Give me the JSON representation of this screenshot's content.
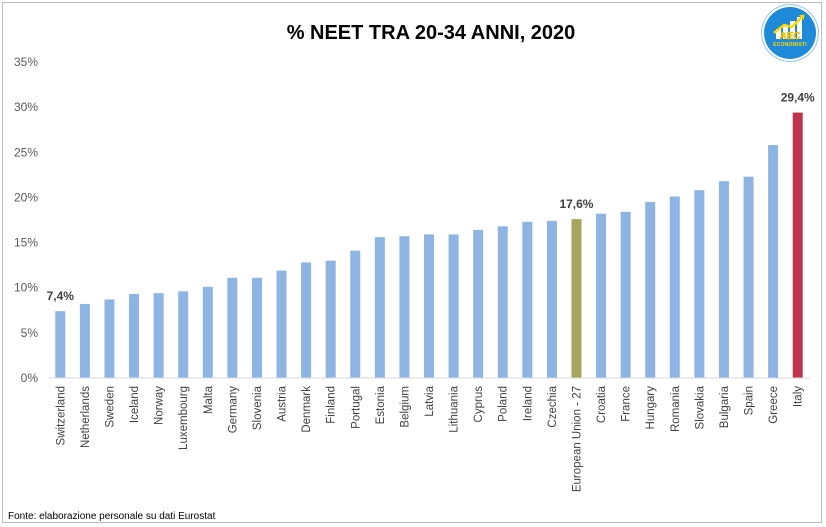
{
  "title": "% NEET TRA 20-34 ANNI, 2020",
  "source": "Fonte: elaborazione personale su dati Eurostat",
  "logo": {
    "text": "ECONOMISTI"
  },
  "colors": {
    "default_bar": "#8db4e2",
    "eu_bar": "#a6a55e",
    "italy_bar": "#c0344e"
  },
  "chart_data": {
    "type": "bar",
    "title": "% NEET TRA 20-34 ANNI, 2020",
    "xlabel": "",
    "ylabel": "",
    "ylim": [
      0,
      35
    ],
    "yticks": [
      "0%",
      "5%",
      "10%",
      "15%",
      "20%",
      "25%",
      "30%",
      "35%"
    ],
    "grid": false,
    "legend": "none",
    "categories": [
      "Switzerland",
      "Netherlands",
      "Sweden",
      "Iceland",
      "Norway",
      "Luxembourg",
      "Malta",
      "Germany",
      "Slovenia",
      "Austria",
      "Denmark",
      "Finland",
      "Portugal",
      "Estonia",
      "Belgium",
      "Latvia",
      "Lithuania",
      "Cyprus",
      "Poland",
      "Ireland",
      "Czechia",
      "European Union - 27",
      "Croatia",
      "France",
      "Hungary",
      "Romania",
      "Slovakia",
      "Bulgaria",
      "Spain",
      "Greece",
      "Italy"
    ],
    "values": [
      7.4,
      8.2,
      8.7,
      9.3,
      9.4,
      9.6,
      10.1,
      11.1,
      11.1,
      11.9,
      12.8,
      13.0,
      14.1,
      15.6,
      15.7,
      15.9,
      15.9,
      16.4,
      16.8,
      17.3,
      17.4,
      17.6,
      18.2,
      18.4,
      19.5,
      20.1,
      20.8,
      21.8,
      22.3,
      25.8,
      29.4
    ],
    "data_labels": [
      {
        "category": "Switzerland",
        "text": "7,4%"
      },
      {
        "category": "European Union - 27",
        "text": "17,6%"
      },
      {
        "category": "Italy",
        "text": "29,4%"
      }
    ],
    "highlight": {
      "European Union - 27": "#a6a55e",
      "Italy": "#c0344e"
    }
  }
}
